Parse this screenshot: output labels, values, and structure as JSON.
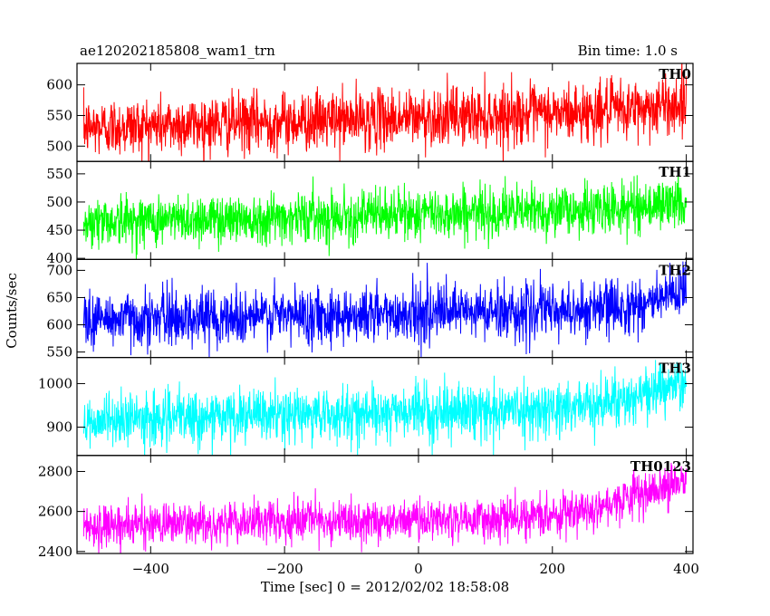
{
  "chart_data": {
    "type": "line",
    "title": "ae120202185808_wam1_trn",
    "bin_time_label": "Bin time: 1.0 s",
    "xlabel": "Time [sec] 0 = 2012/02/02 18:58:08",
    "ylabel": "Counts/sec",
    "xlim": [
      -510,
      410
    ],
    "x_ticks": [
      -400,
      -200,
      0,
      200,
      400
    ],
    "x_tick_labels": [
      "−400",
      "−200",
      "0",
      "200",
      "400"
    ],
    "x_range": [
      -500,
      400
    ],
    "grid": false,
    "panels": [
      {
        "name": "TH0",
        "color": "#ff0000",
        "ylim": [
          475,
          635
        ],
        "y_ticks": [
          500,
          550,
          600
        ],
        "y_tick_labels": [
          "500",
          "550",
          "600"
        ],
        "base_start": 530,
        "base_end": 560,
        "rise_from": 250,
        "rise_amount": 10,
        "noise": 28
      },
      {
        "name": "TH1",
        "color": "#00ff00",
        "ylim": [
          398,
          572
        ],
        "y_ticks": [
          400,
          450,
          500,
          550
        ],
        "y_tick_labels": [
          "400",
          "450",
          "500",
          "550"
        ],
        "base_start": 465,
        "base_end": 490,
        "rise_from": 250,
        "rise_amount": 10,
        "noise": 26
      },
      {
        "name": "TH2",
        "color": "#0000ff",
        "ylim": [
          540,
          720
        ],
        "y_ticks": [
          550,
          600,
          650,
          700
        ],
        "y_tick_labels": [
          "550",
          "600",
          "650",
          "700"
        ],
        "base_start": 610,
        "base_end": 630,
        "rise_from": 250,
        "rise_amount": 25,
        "noise": 30
      },
      {
        "name": "TH3",
        "color": "#00ffff",
        "ylim": [
          835,
          1060
        ],
        "y_ticks": [
          900,
          1000
        ],
        "y_tick_labels": [
          "900",
          "1000"
        ],
        "base_start": 915,
        "base_end": 950,
        "rise_from": 200,
        "rise_amount": 50,
        "noise": 35
      },
      {
        "name": "TH0123",
        "color": "#ff00ff",
        "ylim": [
          2390,
          2880
        ],
        "y_ticks": [
          2400,
          2600,
          2800
        ],
        "y_tick_labels": [
          "2400",
          "2600",
          "2800"
        ],
        "base_start": 2530,
        "base_end": 2580,
        "rise_from": 150,
        "rise_amount": 180,
        "noise": 60
      }
    ]
  }
}
